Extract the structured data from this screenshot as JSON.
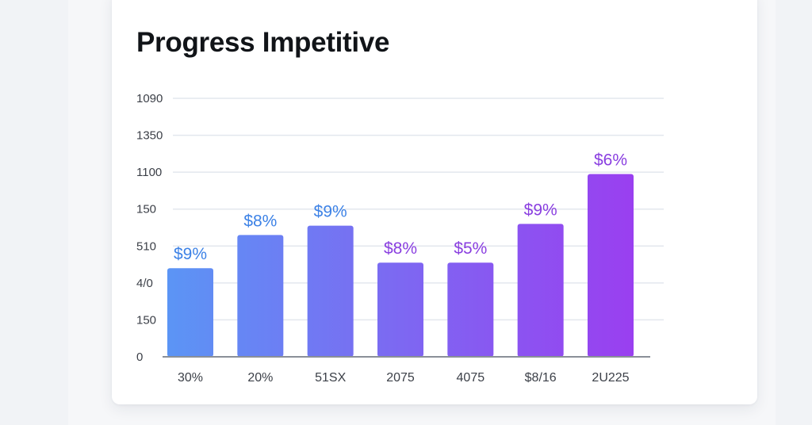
{
  "title": "Progress Impetitive",
  "colors": {
    "bar_start": "#5b95f5",
    "bar_end": "#9a3ff0",
    "label_blue": "#3d82e6",
    "label_purple": "#8a3fe0",
    "grid": "#e3e7ee",
    "axis": "#8a8f98"
  },
  "chart_data": {
    "type": "bar",
    "title": "Progress Impetitive",
    "xlabel": "",
    "ylabel": "",
    "y_tick_labels": [
      "0",
      "150",
      "4/0",
      "510",
      "150",
      "1100",
      "1350",
      "1090"
    ],
    "categories": [
      "30%",
      "20%",
      "51SX",
      "2075",
      "4075",
      "$8/16",
      "2U225"
    ],
    "values": [
      2.4,
      3.3,
      3.55,
      2.55,
      2.55,
      3.6,
      4.95
    ],
    "data_labels": [
      "$9%",
      "$8%",
      "$9%",
      "$8%",
      "$5%",
      "$9%",
      "$6%"
    ],
    "ylim": [
      0,
      7
    ],
    "grid": true,
    "legend": "none"
  }
}
